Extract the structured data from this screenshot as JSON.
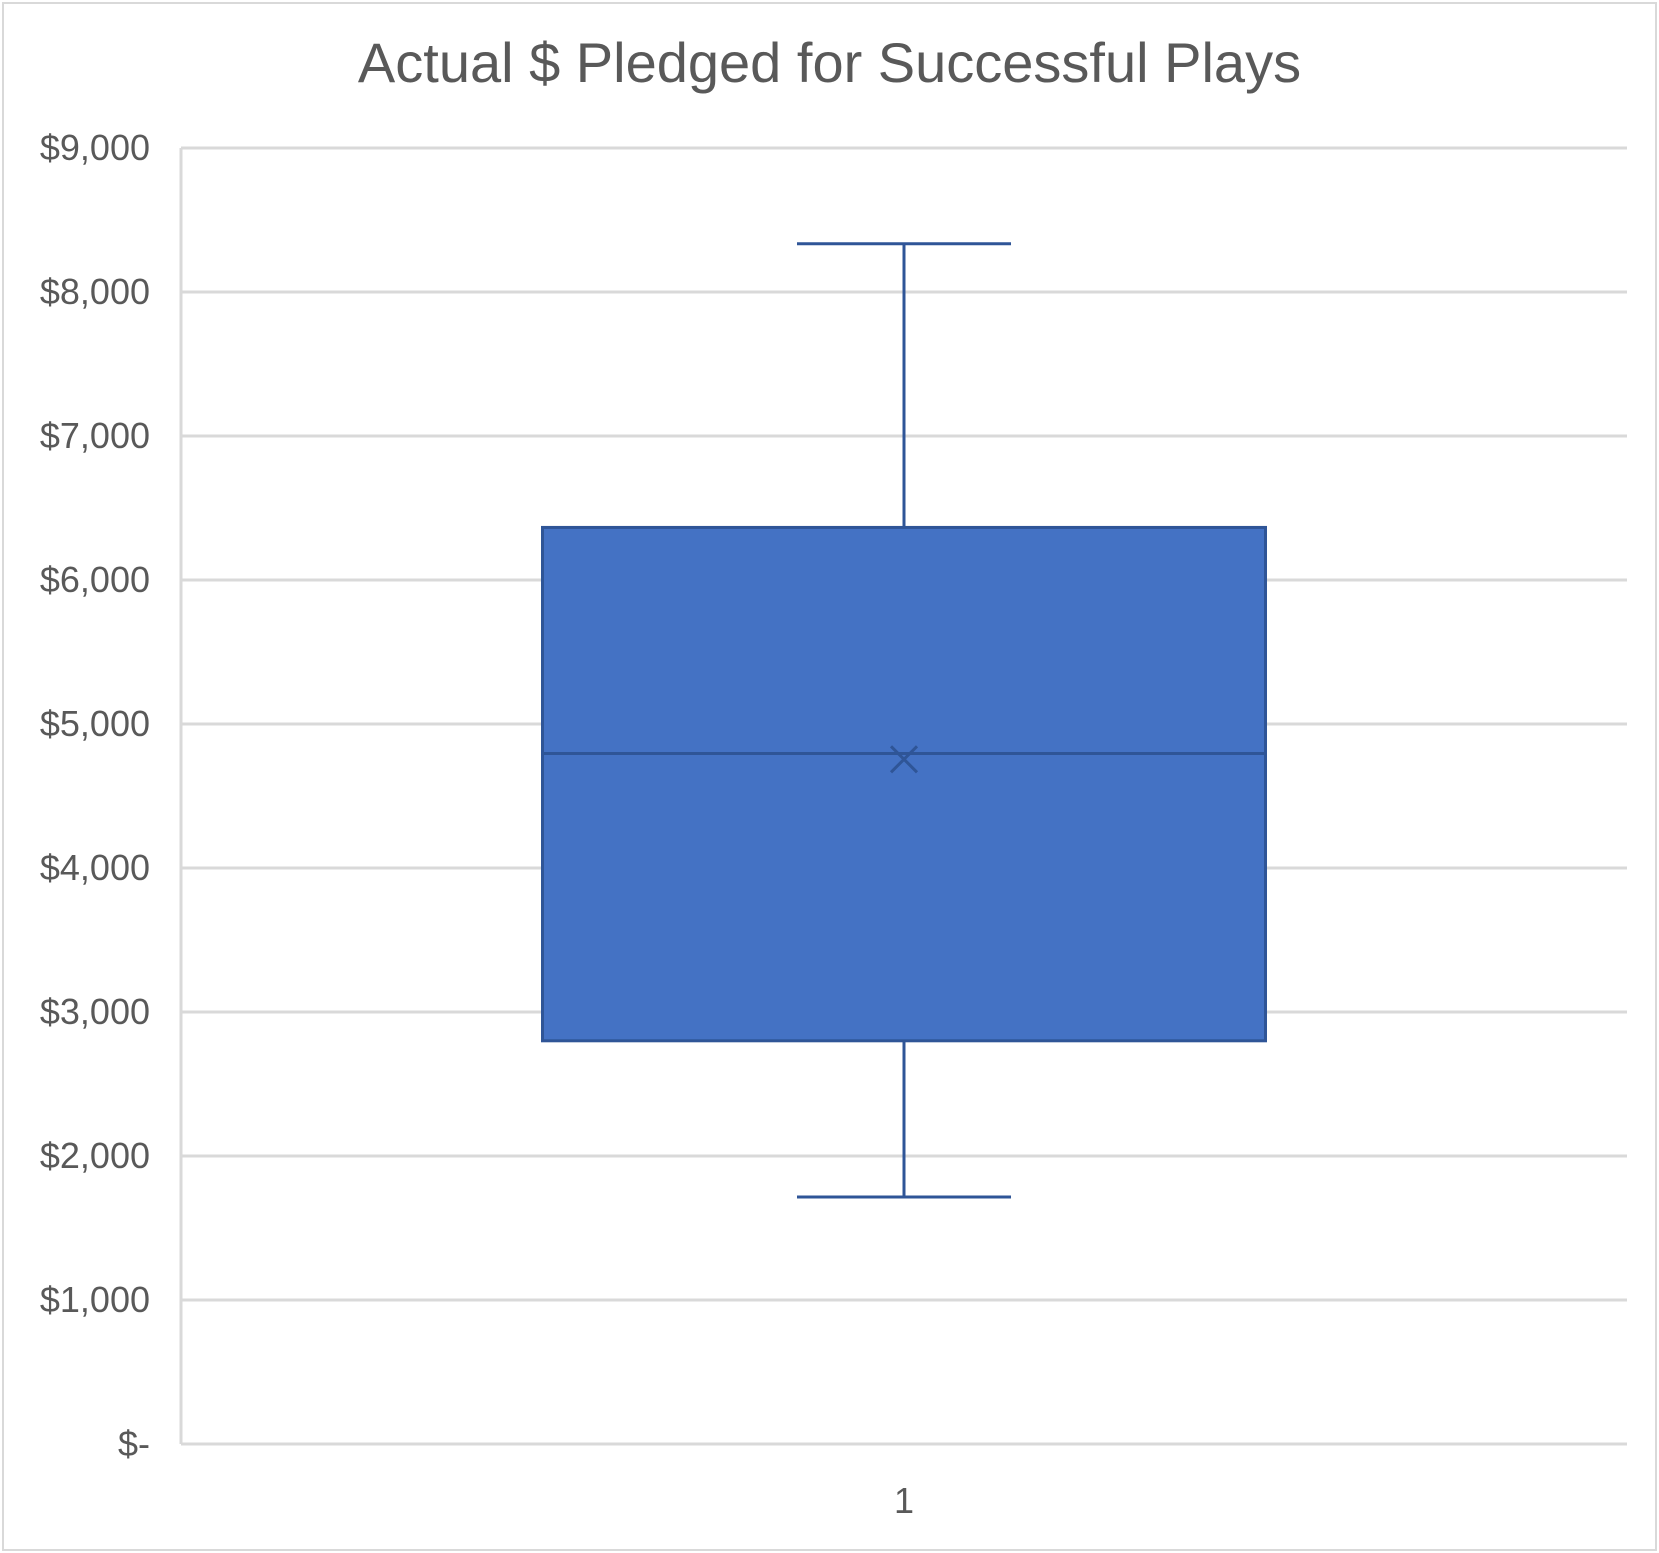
{
  "chart_data": {
    "type": "box",
    "title": "Actual $ Pledged for Successful Plays",
    "xlabel": "",
    "ylabel": "",
    "categories": [
      "1"
    ],
    "ylim": [
      0,
      9000
    ],
    "y_ticks": [
      0,
      1000,
      2000,
      3000,
      4000,
      5000,
      6000,
      7000,
      8000,
      9000
    ],
    "y_tick_labels": [
      "$-",
      "$1,000",
      "$2,000",
      "$3,000",
      "$4,000",
      "$5,000",
      "$6,000",
      "$7,000",
      "$8,000",
      "$9,000"
    ],
    "grid": true,
    "legend": "none",
    "series": [
      {
        "category": "1",
        "min": 1715,
        "q1": 2800,
        "median": 4795,
        "mean": 4755,
        "q3": 6365,
        "max": 8335
      }
    ],
    "colors": {
      "box_fill": "#4472c4",
      "box_stroke": "#2f5597",
      "grid": "#d9d9d9",
      "text": "#595959"
    }
  }
}
